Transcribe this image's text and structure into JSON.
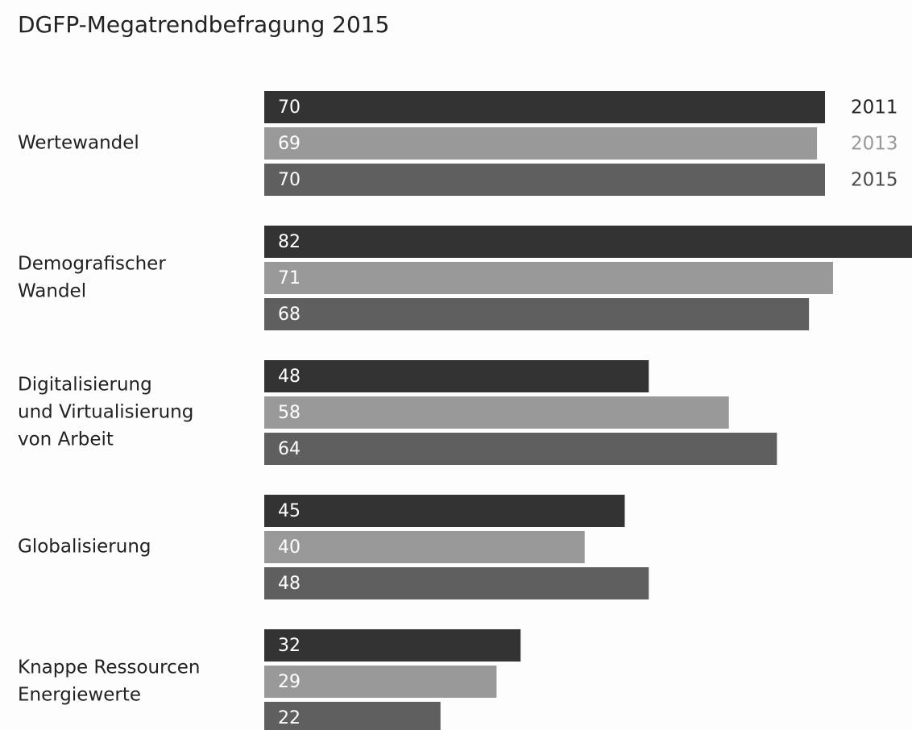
{
  "chart_data": {
    "type": "bar",
    "orientation": "horizontal",
    "title": "DGFP-Megatrendbefragung 2015",
    "categories": [
      [
        "Wertewandel"
      ],
      [
        "Demografischer",
        "Wandel"
      ],
      [
        "Digitalisierung",
        "und Virtualisierung",
        "von Arbeit"
      ],
      [
        "Globalisierung"
      ],
      [
        "Knappe Ressourcen",
        "Energiewerte"
      ]
    ],
    "series": [
      {
        "name": "2011",
        "color": "#333333",
        "label_color": "#222222",
        "values": [
          70,
          82,
          48,
          45,
          32
        ]
      },
      {
        "name": "2013",
        "color": "#999999",
        "label_color": "#999999",
        "values": [
          69,
          71,
          58,
          40,
          29
        ]
      },
      {
        "name": "2015",
        "color": "#5f5f5f",
        "label_color": "#4a4a4a",
        "values": [
          70,
          68,
          64,
          48,
          22
        ]
      }
    ]
  }
}
